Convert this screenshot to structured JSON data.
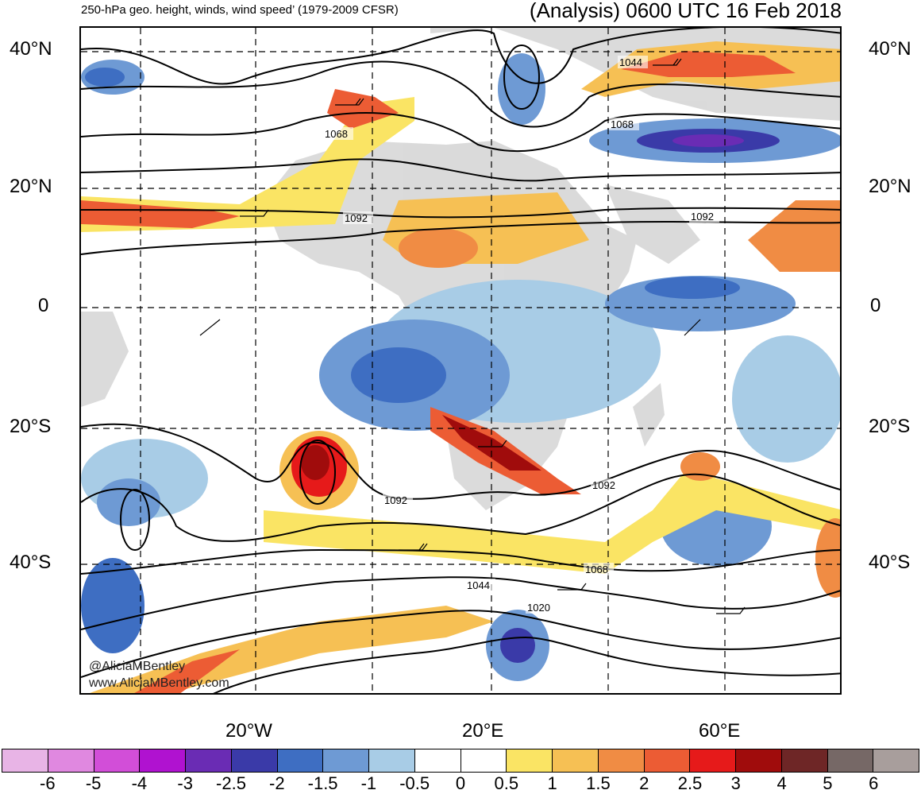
{
  "header": {
    "left_title": "250-hPa geo. height, winds, wind speed’ (1979-2009 CFSR)",
    "right_title": "(Analysis) 0600 UTC 16 Feb 2018"
  },
  "axes": {
    "lat_labels": [
      "40°N",
      "20°N",
      "0",
      "20°S",
      "40°S"
    ],
    "lon_labels": [
      "20°W",
      "20°E",
      "60°E"
    ]
  },
  "contour_labels": [
    "1044",
    "1068",
    "1068",
    "1092",
    "1092",
    "1092",
    "1092",
    "1068",
    "1044",
    "1020"
  ],
  "credits": {
    "handle": "@AliciaMBentley",
    "url": "www.AliciaMBentley.com"
  },
  "colorbar": {
    "labels": [
      "-6",
      "-5",
      "-4",
      "-3",
      "-2.5",
      "-2",
      "-1.5",
      "-1",
      "-0.5",
      "0",
      "0.5",
      "1",
      "1.5",
      "2",
      "2.5",
      "3",
      "4",
      "5",
      "6"
    ],
    "colors": [
      "#e8b4e6",
      "#e088e0",
      "#d24ed8",
      "#b012d0",
      "#6a2cb4",
      "#3a3aa8",
      "#3e6ec2",
      "#6e9ad4",
      "#a8cce6",
      "#ffffff",
      "#ffffff",
      "#fae464",
      "#f6c054",
      "#f08c44",
      "#ec5c34",
      "#e61a1a",
      "#a00c0c",
      "#6e2626",
      "#766866",
      "#a89e9c"
    ]
  },
  "palette": {
    "land": "#bdbdbd",
    "contour": "#000000"
  }
}
